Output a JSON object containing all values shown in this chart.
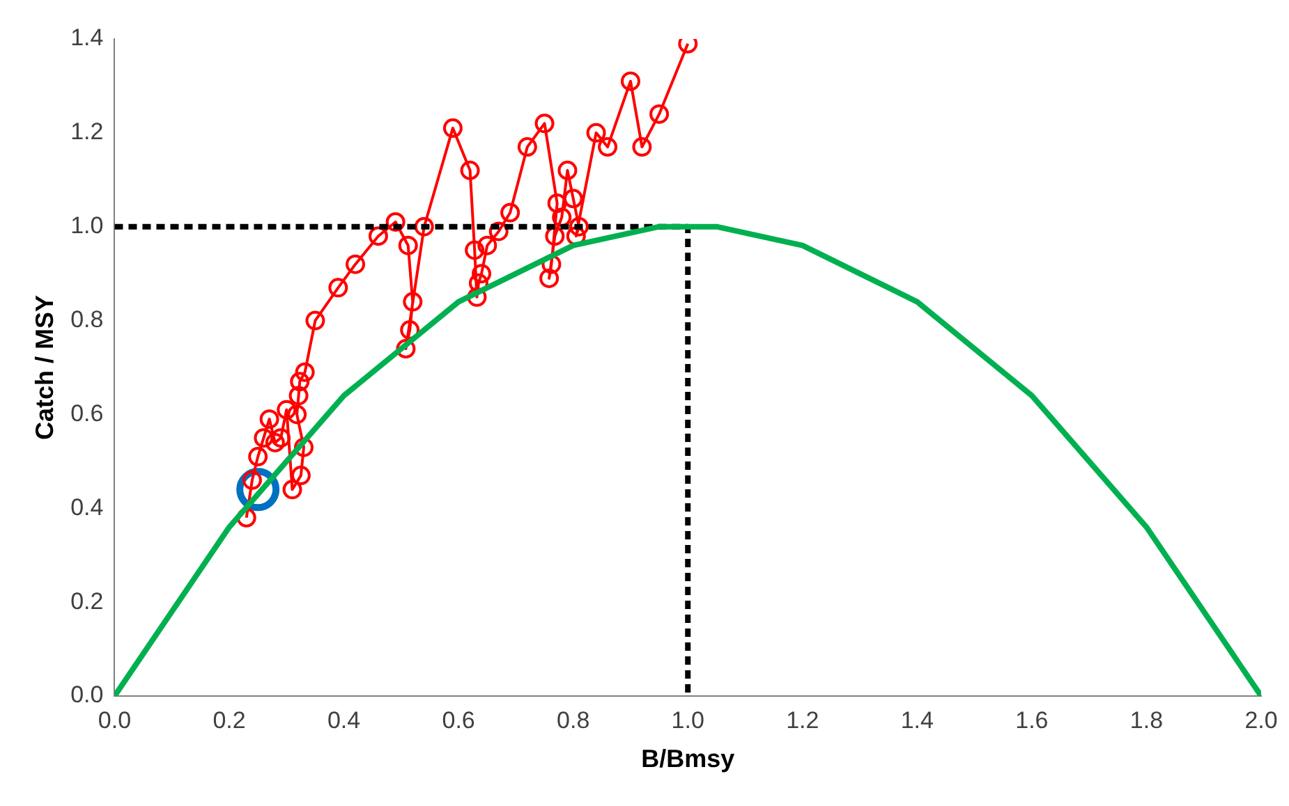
{
  "chart_data": {
    "type": "line",
    "xlabel": "B/Bmsy",
    "ylabel": "Catch / MSY",
    "xlim": [
      0,
      2
    ],
    "ylim": [
      0,
      1.4
    ],
    "xticks": [
      {
        "value": 0,
        "label": "0.0"
      },
      {
        "value": 0.2,
        "label": "0.2"
      },
      {
        "value": 0.4,
        "label": "0.4"
      },
      {
        "value": 0.6,
        "label": "0.6"
      },
      {
        "value": 0.8,
        "label": "0.8"
      },
      {
        "value": 1,
        "label": "1.0"
      },
      {
        "value": 1.2,
        "label": "1.2"
      },
      {
        "value": 1.4,
        "label": "1.4"
      },
      {
        "value": 1.6,
        "label": "1.6"
      },
      {
        "value": 1.8,
        "label": "1.8"
      },
      {
        "value": 2,
        "label": "2.0"
      }
    ],
    "yticks": [
      {
        "value": 0,
        "label": "0.0"
      },
      {
        "value": 0.2,
        "label": "0.2"
      },
      {
        "value": 0.4,
        "label": "0.4"
      },
      {
        "value": 0.6,
        "label": "0.6"
      },
      {
        "value": 0.8,
        "label": "0.8"
      },
      {
        "value": 1,
        "label": "1.0"
      },
      {
        "value": 1.2,
        "label": "1.2"
      },
      {
        "value": 1.4,
        "label": "1.4"
      }
    ],
    "grid": false,
    "legend": false,
    "series": [
      {
        "type": "line",
        "color": "#00b050",
        "marker": "none",
        "line_style": "solid",
        "x": [
          0,
          0.2,
          0.4,
          0.6,
          0.8,
          0.95,
          1.05,
          1.2,
          1.4,
          1.6,
          1.8,
          2.0
        ],
        "values": [
          0,
          0.36,
          0.64,
          0.84,
          0.96,
          1.0,
          1.0,
          0.96,
          0.84,
          0.64,
          0.36,
          0
        ]
      },
      {
        "type": "line",
        "color": "#000000",
        "marker": "none",
        "line_style": "dashed",
        "x": [
          0,
          1,
          1
        ],
        "values": [
          1,
          1,
          0
        ]
      },
      {
        "type": "line",
        "color": "#ff0000",
        "marker": "circle",
        "line_style": "solid",
        "x": [
          0.23,
          0.24,
          0.25,
          0.26,
          0.27,
          0.28,
          0.29,
          0.3,
          0.31,
          0.325,
          0.33,
          0.318,
          0.321,
          0.323,
          0.332,
          0.35,
          0.39,
          0.42,
          0.46,
          0.49,
          0.512,
          0.52,
          0.515,
          0.508,
          0.54,
          0.59,
          0.62,
          0.628,
          0.632,
          0.635,
          0.64,
          0.65,
          0.67,
          0.69,
          0.72,
          0.75,
          0.772,
          0.762,
          0.758,
          0.768,
          0.78,
          0.79,
          0.8,
          0.81,
          0.805,
          0.84,
          0.86,
          0.9,
          0.92,
          0.95,
          1.0
        ],
        "values": [
          0.38,
          0.46,
          0.51,
          0.55,
          0.59,
          0.54,
          0.55,
          0.61,
          0.44,
          0.47,
          0.53,
          0.6,
          0.64,
          0.67,
          0.69,
          0.8,
          0.87,
          0.92,
          0.98,
          1.01,
          0.96,
          0.84,
          0.78,
          0.74,
          1.0,
          1.21,
          1.12,
          0.95,
          0.85,
          0.88,
          0.9,
          0.96,
          0.99,
          1.03,
          1.17,
          1.22,
          1.05,
          0.92,
          0.89,
          0.98,
          1.02,
          1.12,
          1.06,
          1.0,
          0.98,
          1.2,
          1.17,
          1.31,
          1.17,
          1.24,
          1.39
        ]
      },
      {
        "type": "scatter",
        "color": "#0070c0",
        "marker": "circle",
        "x": [
          0.25
        ],
        "values": [
          0.44
        ]
      }
    ]
  }
}
